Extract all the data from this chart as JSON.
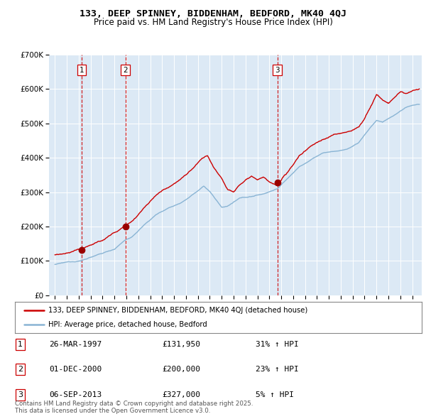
{
  "title": "133, DEEP SPINNEY, BIDDENHAM, BEDFORD, MK40 4QJ",
  "subtitle": "Price paid vs. HM Land Registry's House Price Index (HPI)",
  "ylim": [
    0,
    700000
  ],
  "yticks": [
    0,
    100000,
    200000,
    300000,
    400000,
    500000,
    600000,
    700000
  ],
  "ytick_labels": [
    "£0",
    "£100K",
    "£200K",
    "£300K",
    "£400K",
    "£500K",
    "£600K",
    "£700K"
  ],
  "plot_bg_color": "#dce9f5",
  "red_line_color": "#cc0000",
  "blue_line_color": "#89b4d4",
  "sale_marker_color": "#990000",
  "vline_color": "#cc0000",
  "grid_color": "#ffffff",
  "sales": [
    {
      "year": 1997.23,
      "price": 131950,
      "label": "1"
    },
    {
      "year": 2000.92,
      "price": 200000,
      "label": "2"
    },
    {
      "year": 2013.68,
      "price": 327000,
      "label": "3"
    }
  ],
  "sale_table": [
    {
      "num": "1",
      "date": "26-MAR-1997",
      "price": "£131,950",
      "change": "31% ↑ HPI"
    },
    {
      "num": "2",
      "date": "01-DEC-2000",
      "price": "£200,000",
      "change": "23% ↑ HPI"
    },
    {
      "num": "3",
      "date": "06-SEP-2013",
      "price": "£327,000",
      "change": "5% ↑ HPI"
    }
  ],
  "legend_line1": "133, DEEP SPINNEY, BIDDENHAM, BEDFORD, MK40 4QJ (detached house)",
  "legend_line2": "HPI: Average price, detached house, Bedford",
  "footer": "Contains HM Land Registry data © Crown copyright and database right 2025.\nThis data is licensed under the Open Government Licence v3.0.",
  "xstart": 1994.5,
  "xend": 2025.8
}
